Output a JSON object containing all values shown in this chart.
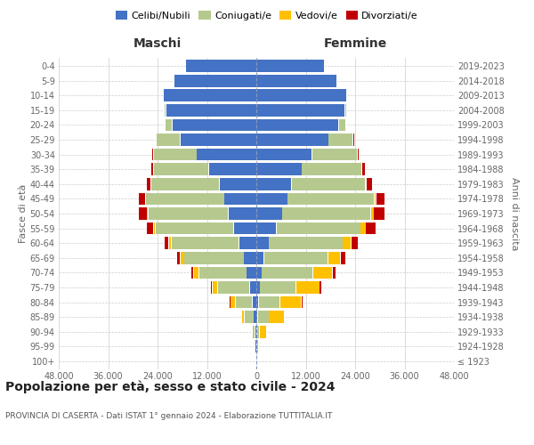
{
  "age_groups": [
    "100+",
    "95-99",
    "90-94",
    "85-89",
    "80-84",
    "75-79",
    "70-74",
    "65-69",
    "60-64",
    "55-59",
    "50-54",
    "45-49",
    "40-44",
    "35-39",
    "30-34",
    "25-29",
    "20-24",
    "15-19",
    "10-14",
    "5-9",
    "0-4"
  ],
  "birth_years": [
    "≤ 1923",
    "1924-1928",
    "1929-1933",
    "1934-1938",
    "1939-1943",
    "1944-1948",
    "1949-1953",
    "1954-1958",
    "1959-1963",
    "1964-1968",
    "1969-1973",
    "1974-1978",
    "1979-1983",
    "1984-1988",
    "1989-1993",
    "1994-1998",
    "1999-2003",
    "2004-2008",
    "2009-2013",
    "2014-2018",
    "2019-2023"
  ],
  "maschi": {
    "celibi": [
      120,
      230,
      320,
      650,
      950,
      1600,
      2400,
      3000,
      4200,
      5500,
      6800,
      7800,
      9000,
      11500,
      14500,
      18500,
      20500,
      22000,
      22500,
      20000,
      17000
    ],
    "coniugati": [
      60,
      120,
      600,
      2200,
      4200,
      7800,
      11500,
      14500,
      16500,
      19000,
      19500,
      19000,
      16500,
      13500,
      10500,
      5800,
      1600,
      320,
      55,
      12,
      6
    ],
    "vedovi": [
      25,
      90,
      320,
      750,
      1100,
      1300,
      1300,
      950,
      650,
      420,
      270,
      160,
      110,
      85,
      65,
      55,
      35,
      12,
      6,
      3,
      2
    ],
    "divorziati": [
      6,
      25,
      55,
      110,
      160,
      320,
      530,
      750,
      950,
      1600,
      1900,
      1600,
      950,
      530,
      270,
      110,
      55,
      25,
      6,
      3,
      2
    ]
  },
  "femmine": {
    "nubili": [
      60,
      120,
      180,
      350,
      550,
      850,
      1300,
      1900,
      3000,
      4800,
      6300,
      7600,
      8500,
      11000,
      13500,
      17500,
      20000,
      21500,
      22000,
      19500,
      16500
    ],
    "coniugate": [
      35,
      110,
      650,
      2700,
      5200,
      8800,
      12500,
      15500,
      18000,
      20500,
      21500,
      21000,
      18000,
      14500,
      11000,
      6000,
      1700,
      320,
      55,
      12,
      6
    ],
    "vedove": [
      65,
      330,
      1600,
      3700,
      5200,
      5700,
      4700,
      3100,
      2100,
      1300,
      750,
      430,
      220,
      130,
      85,
      65,
      35,
      12,
      6,
      3,
      2
    ],
    "divorziate": [
      6,
      25,
      65,
      160,
      270,
      530,
      850,
      1150,
      1600,
      2300,
      2600,
      2100,
      1300,
      650,
      320,
      130,
      65,
      25,
      6,
      3,
      2
    ]
  },
  "colors": {
    "celibi": "#4472c4",
    "coniugati": "#b5c98e",
    "vedovi": "#ffc000",
    "divorziati": "#c00000"
  },
  "xlim": 48000,
  "title": "Popolazione per età, sesso e stato civile - 2024",
  "subtitle": "PROVINCIA DI CASERTA - Dati ISTAT 1° gennaio 2024 - Elaborazione TUTTITALIA.IT",
  "header_maschi": "Maschi",
  "header_femmine": "Femmine",
  "ylabel_left": "Fasce di età",
  "ylabel_right": "Anni di nascita",
  "legend_labels": [
    "Celibi/Nubili",
    "Coniugati/e",
    "Vedovi/e",
    "Divorziati/e"
  ],
  "xtick_vals": [
    -48000,
    -36000,
    -24000,
    -12000,
    0,
    12000,
    24000,
    36000,
    48000
  ],
  "xtick_labels": [
    "48.000",
    "36.000",
    "24.000",
    "12.000",
    "0",
    "12.000",
    "24.000",
    "36.000",
    "48.000"
  ],
  "background_color": "#ffffff",
  "grid_color": "#cccccc"
}
